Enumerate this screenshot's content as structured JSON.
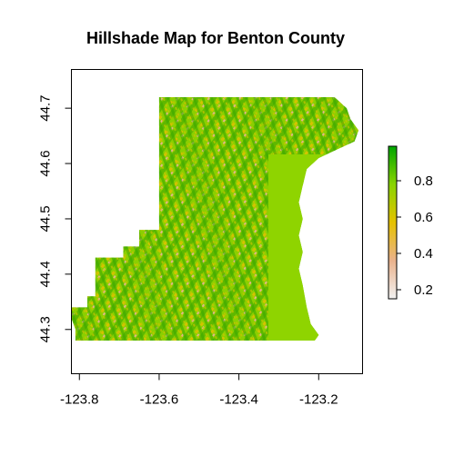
{
  "title": "Hillshade Map for Benton County",
  "chart_data": {
    "type": "heatmap",
    "title": "Hillshade Map for Benton County",
    "xlabel": "",
    "ylabel": "",
    "x_ticks": [
      -123.8,
      -123.6,
      -123.4,
      -123.2
    ],
    "x_tick_labels": [
      "-123.8",
      "-123.6",
      "-123.4",
      "-123.2"
    ],
    "y_ticks": [
      44.3,
      44.4,
      44.5,
      44.6,
      44.7
    ],
    "y_tick_labels": [
      "44.3",
      "44.4",
      "44.5",
      "44.6",
      "44.7"
    ],
    "xlim": [
      -123.82,
      -123.09
    ],
    "ylim": [
      44.22,
      44.77
    ],
    "legend": {
      "placement": "right",
      "ticks": [
        0.2,
        0.4,
        0.6,
        0.8
      ],
      "tick_labels": [
        "0.2",
        "0.4",
        "0.6",
        "0.8"
      ],
      "range": [
        0.15,
        0.99
      ],
      "colors": [
        "#f2f2f2",
        "#eab28c",
        "#e6c200",
        "#89d400",
        "#00a600"
      ]
    },
    "county_outline": [
      [
        -123.6,
        44.72
      ],
      [
        -123.27,
        44.72
      ],
      [
        -123.16,
        44.72
      ],
      [
        -123.13,
        44.7
      ],
      [
        -123.12,
        44.68
      ],
      [
        -123.1,
        44.66
      ],
      [
        -123.11,
        44.64
      ],
      [
        -123.14,
        44.63
      ],
      [
        -123.17,
        44.62
      ],
      [
        -123.2,
        44.61
      ],
      [
        -123.23,
        44.59
      ],
      [
        -123.24,
        44.56
      ],
      [
        -123.25,
        44.53
      ],
      [
        -123.24,
        44.5
      ],
      [
        -123.25,
        44.47
      ],
      [
        -123.24,
        44.44
      ],
      [
        -123.25,
        44.41
      ],
      [
        -123.24,
        44.38
      ],
      [
        -123.23,
        44.34
      ],
      [
        -123.22,
        44.31
      ],
      [
        -123.2,
        44.29
      ],
      [
        -123.21,
        44.28
      ],
      [
        -123.81,
        44.28
      ],
      [
        -123.81,
        44.3
      ],
      [
        -123.82,
        44.32
      ],
      [
        -123.82,
        44.34
      ],
      [
        -123.78,
        44.34
      ],
      [
        -123.78,
        44.36
      ],
      [
        -123.76,
        44.36
      ],
      [
        -123.76,
        44.43
      ],
      [
        -123.69,
        44.43
      ],
      [
        -123.69,
        44.45
      ],
      [
        -123.65,
        44.45
      ],
      [
        -123.65,
        44.48
      ],
      [
        -123.6,
        44.48
      ],
      [
        -123.6,
        44.72
      ]
    ],
    "values_description_only": "hillshade raster values range 0.15–0.99"
  }
}
